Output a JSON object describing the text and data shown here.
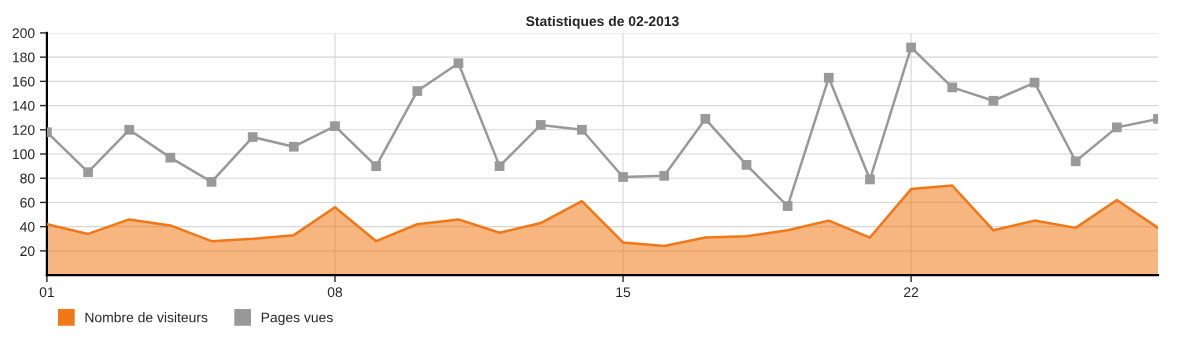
{
  "chart_data": {
    "type": "line",
    "title": "Statistiques de 02-2013",
    "x": [
      1,
      2,
      3,
      4,
      5,
      6,
      7,
      8,
      9,
      10,
      11,
      12,
      13,
      14,
      15,
      16,
      17,
      18,
      19,
      20,
      21,
      22,
      23,
      24,
      25,
      26,
      27,
      28
    ],
    "series": [
      {
        "name": "Nombre de visiteurs",
        "type": "area",
        "color": "#f07818",
        "marker": "none",
        "values": [
          42,
          34,
          46,
          41,
          28,
          30,
          33,
          56,
          28,
          42,
          46,
          35,
          43,
          61,
          27,
          24,
          31,
          32,
          37,
          45,
          31,
          71,
          74,
          37,
          45,
          39,
          62,
          39
        ]
      },
      {
        "name": "Pages vues",
        "color": "#999999",
        "marker": "square",
        "values": [
          118,
          85,
          120,
          97,
          77,
          114,
          106,
          123,
          90,
          152,
          175,
          90,
          124,
          120,
          81,
          82,
          129,
          91,
          57,
          163,
          79,
          188,
          155,
          144,
          159,
          94,
          122,
          129
        ]
      }
    ],
    "xlim": [
      1,
      28
    ],
    "xticks": [
      {
        "value": 1,
        "label": "01"
      },
      {
        "value": 8,
        "label": "08"
      },
      {
        "value": 15,
        "label": "15"
      },
      {
        "value": 22,
        "label": "22"
      }
    ],
    "ylim": [
      0,
      200
    ],
    "yticks": [
      20,
      40,
      60,
      80,
      100,
      120,
      140,
      160,
      180,
      200
    ],
    "grid": true,
    "legend": "bottom left"
  }
}
